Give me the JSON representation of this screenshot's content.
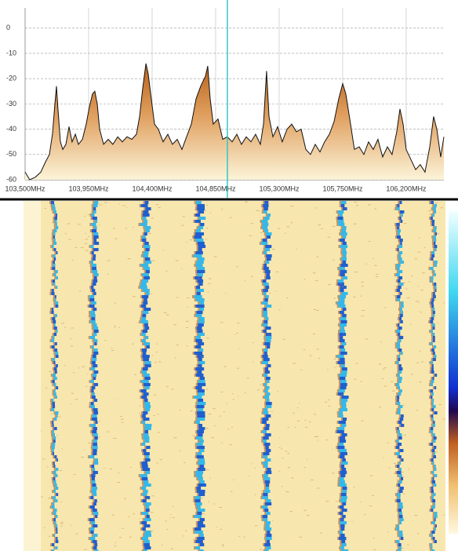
{
  "chart_data": {
    "type": "line",
    "x": [
      103500,
      103533,
      103572,
      103611,
      103644,
      103672,
      103694,
      103711,
      103722,
      103733,
      103750,
      103767,
      103789,
      103811,
      103833,
      103856,
      103878,
      103906,
      103933,
      103956,
      103978,
      103994,
      104011,
      104028,
      104056,
      104089,
      104122,
      104156,
      104189,
      104222,
      104256,
      104289,
      104311,
      104333,
      104356,
      104372,
      104394,
      104417,
      104444,
      104478,
      104511,
      104544,
      104578,
      104611,
      104644,
      104678,
      104711,
      104744,
      104778,
      104794,
      104811,
      104833,
      104867,
      104900,
      104933,
      104967,
      105000,
      105033,
      105067,
      105100,
      105133,
      105167,
      105189,
      105211,
      105228,
      105256,
      105289,
      105322,
      105356,
      105389,
      105422,
      105456,
      105489,
      105522,
      105556,
      105589,
      105622,
      105656,
      105689,
      105722,
      105750,
      105772,
      105800,
      105833,
      105867,
      105900,
      105933,
      105967,
      106000,
      106033,
      106067,
      106100,
      106133,
      106156,
      106178,
      106200,
      106233,
      106267,
      106300,
      106333,
      106367,
      106394,
      106417,
      106444,
      106467
    ],
    "values": [
      -57,
      -60,
      -59,
      -57,
      -53,
      -50,
      -42,
      -30,
      -23,
      -32,
      -45,
      -48,
      -46,
      -39,
      -45,
      -42,
      -46,
      -44,
      -38,
      -31,
      -26,
      -25,
      -30,
      -40,
      -46,
      -44,
      -46,
      -43,
      -45,
      -43,
      -44,
      -42,
      -35,
      -24,
      -14,
      -18,
      -28,
      -38,
      -40,
      -45,
      -42,
      -46,
      -44,
      -48,
      -43,
      -38,
      -28,
      -23,
      -19,
      -15,
      -28,
      -38,
      -36,
      -44,
      -43,
      -45,
      -42,
      -46,
      -43,
      -45,
      -42,
      -46,
      -38,
      -17,
      -35,
      -43,
      -39,
      -45,
      -40,
      -38,
      -41,
      -40,
      -48,
      -50,
      -46,
      -49,
      -45,
      -42,
      -37,
      -28,
      -22,
      -26,
      -36,
      -48,
      -47,
      -50,
      -45,
      -48,
      -44,
      -51,
      -47,
      -50,
      -41,
      -32,
      -38,
      -48,
      -52,
      -56,
      -54,
      -57,
      -47,
      -35,
      -40,
      -51,
      -43
    ],
    "color": "#111111",
    "xlim": [
      103500,
      106467
    ],
    "ylim": [
      -60,
      8
    ],
    "xticks": [
      {
        "value": 103500,
        "label": "103,500MHz"
      },
      {
        "value": 103950,
        "label": "103,950MHz"
      },
      {
        "value": 104400,
        "label": "104,400MHz"
      },
      {
        "value": 104850,
        "label": "104,850MHz"
      },
      {
        "value": 105300,
        "label": "105,300MHz"
      },
      {
        "value": 105750,
        "label": "105,750MHz"
      },
      {
        "value": 106200,
        "label": "106,200MHz"
      }
    ],
    "yticks": [
      0,
      -10,
      -20,
      -30,
      -40,
      -50,
      -60
    ],
    "grid": true,
    "cursor": 104933
  }
}
